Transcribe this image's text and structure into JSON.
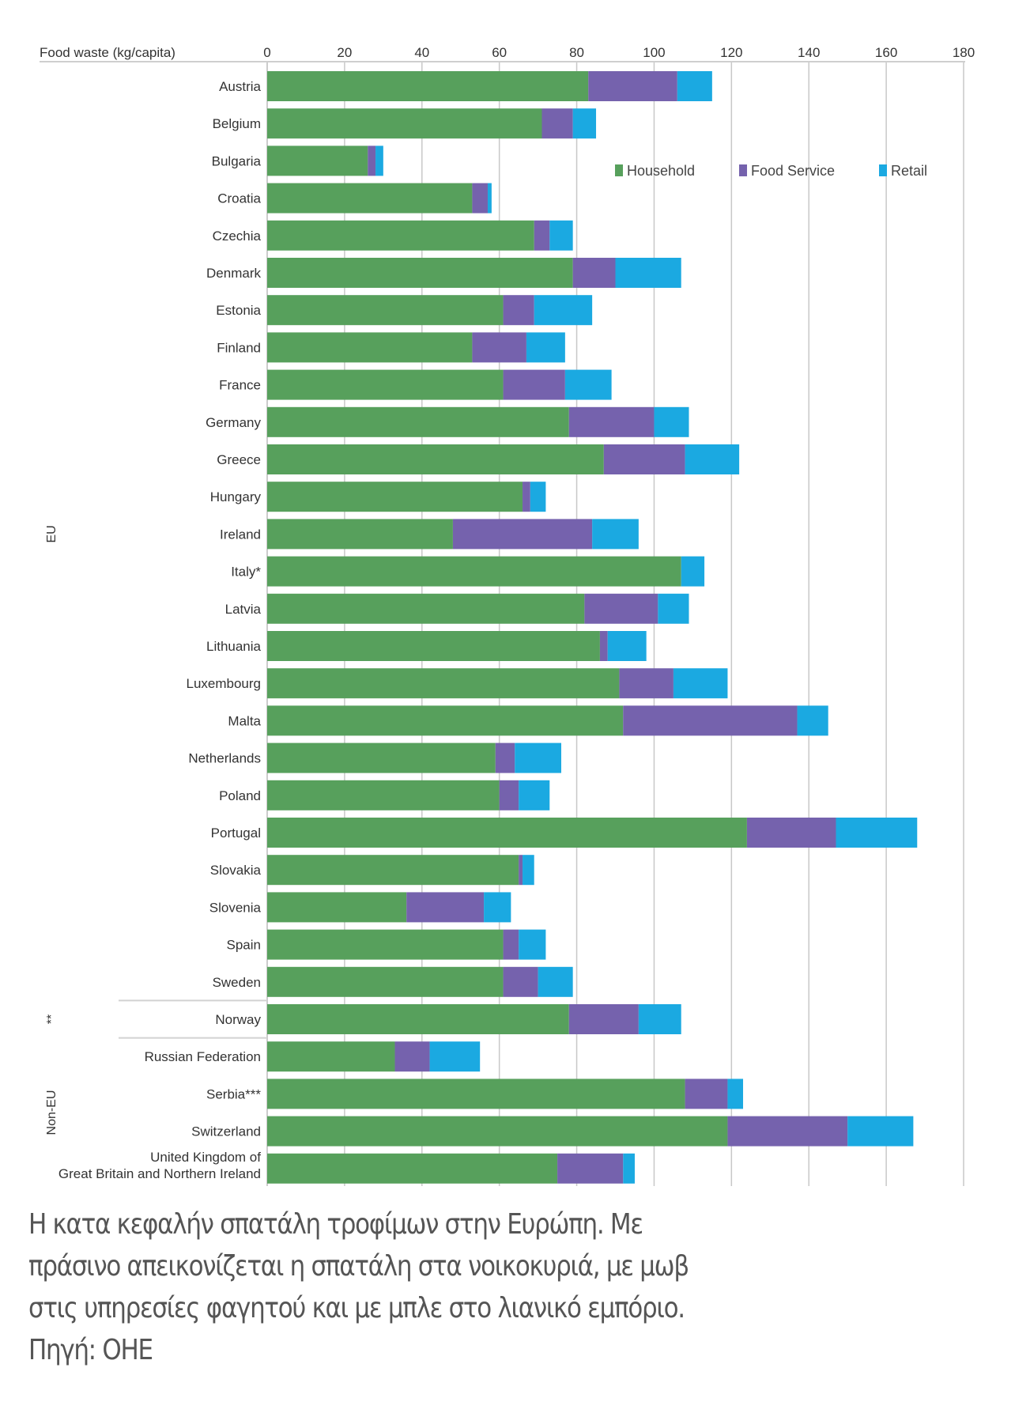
{
  "chart_data": {
    "type": "bar",
    "orientation": "horizontal",
    "stacked": true,
    "title": "",
    "xlabel": "Food waste (kg/capita)",
    "ylabel": "",
    "xlim": [
      0,
      180
    ],
    "x_ticks": [
      0,
      20,
      40,
      60,
      80,
      100,
      120,
      140,
      160,
      180
    ],
    "grid": true,
    "legend_position": "top-right",
    "categories": [
      "Austria",
      "Belgium",
      "Bulgaria",
      "Croatia",
      "Czechia",
      "Denmark",
      "Estonia",
      "Finland",
      "France",
      "Germany",
      "Greece",
      "Hungary",
      "Ireland",
      "Italy*",
      "Latvia",
      "Lithuania",
      "Luxembourg",
      "Malta",
      "Netherlands",
      "Poland",
      "Portugal",
      "Slovakia",
      "Slovenia",
      "Spain",
      "Sweden",
      "Norway",
      "Russian Federation",
      "Serbia***",
      "Switzerland",
      "United Kingdom of\nGreat Britain and Northern Ireland"
    ],
    "groups": [
      {
        "label": "EU",
        "from": 0,
        "to": 24
      },
      {
        "label": "**",
        "from": 25,
        "to": 25
      },
      {
        "label": "Non-EU",
        "from": 26,
        "to": 29
      }
    ],
    "series": [
      {
        "name": "Household",
        "color": "#57a05c",
        "values": [
          83,
          71,
          26,
          53,
          69,
          79,
          61,
          53,
          61,
          78,
          87,
          66,
          48,
          107,
          82,
          86,
          91,
          92,
          59,
          60,
          124,
          65,
          36,
          61,
          61,
          78,
          33,
          108,
          119,
          75
        ]
      },
      {
        "name": "Food Service",
        "color": "#7562ad",
        "values": [
          23,
          8,
          2,
          4,
          4,
          11,
          8,
          14,
          16,
          22,
          21,
          2,
          36,
          0,
          19,
          2,
          14,
          45,
          5,
          5,
          23,
          1,
          20,
          4,
          9,
          18,
          9,
          11,
          31,
          17
        ]
      },
      {
        "name": "Retail",
        "color": "#1ba9e1",
        "values": [
          9,
          6,
          2,
          1,
          6,
          17,
          15,
          10,
          12,
          9,
          14,
          4,
          12,
          6,
          8,
          10,
          14,
          8,
          12,
          8,
          21,
          3,
          7,
          7,
          9,
          11,
          13,
          4,
          17,
          3
        ]
      }
    ]
  },
  "caption": {
    "lines": [
      "Η κατα κεφαλήν σπατάλη τροφίμων στην Ευρώπη. Με",
      "πράσινο απεικονίζεται η σπατάλη στα νοικοκυριά, με μωβ",
      "στις υπηρεσίες φαγητού και με μπλε στο λιανικό εμπόριο.",
      "Πηγή: ΟΗΕ"
    ]
  }
}
